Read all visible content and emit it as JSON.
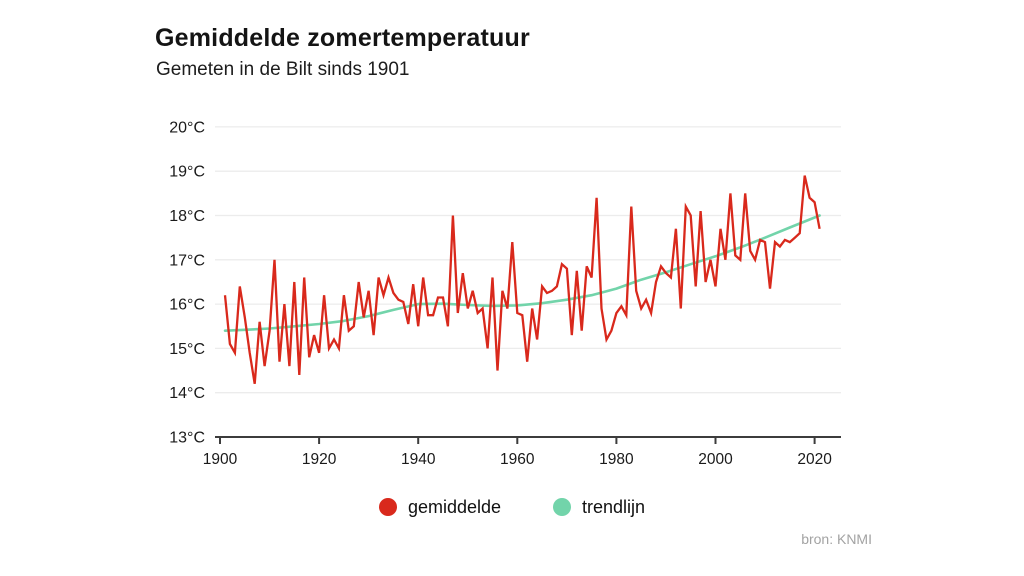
{
  "header": {
    "title": "Gemiddelde zomertemperatuur",
    "subtitle": "Gemeten in de Bilt sinds 1901"
  },
  "legend": {
    "average_label": "gemiddelde",
    "trend_label": "trendlijn"
  },
  "source": "bron: KNMI",
  "colors": {
    "average_line": "#d9291c",
    "trend_line": "#72d4aa",
    "grid": "#ececec",
    "axis": "#3c3c3c",
    "axis_text": "#1a1a1a",
    "source_text": "#a3a3a3"
  },
  "chart_data": {
    "type": "line",
    "title": "Gemiddelde zomertemperatuur",
    "subtitle": "Gemeten in de Bilt sinds 1901",
    "xlabel": "",
    "ylabel": "",
    "ylim": [
      13,
      20
    ],
    "xlim": [
      1900,
      2022
    ],
    "grid": "horizontal",
    "legend_position": "bottom-center",
    "y_ticks": [
      {
        "value": 13,
        "label": "13°C"
      },
      {
        "value": 14,
        "label": "14°C"
      },
      {
        "value": 15,
        "label": "15°C"
      },
      {
        "value": 16,
        "label": "16°C"
      },
      {
        "value": 17,
        "label": "17°C"
      },
      {
        "value": 18,
        "label": "18°C"
      },
      {
        "value": 19,
        "label": "19°C"
      },
      {
        "value": 20,
        "label": "20°C"
      }
    ],
    "x_ticks": [
      {
        "value": 1900,
        "label": "1900"
      },
      {
        "value": 1920,
        "label": "1920"
      },
      {
        "value": 1940,
        "label": "1940"
      },
      {
        "value": 1960,
        "label": "1960"
      },
      {
        "value": 1980,
        "label": "1980"
      },
      {
        "value": 2000,
        "label": "2000"
      },
      {
        "value": 2020,
        "label": "2020"
      }
    ],
    "series": [
      {
        "name": "gemiddelde",
        "unit": "°C",
        "start_year": 1901,
        "values": [
          16.2,
          15.1,
          14.9,
          16.4,
          15.7,
          14.9,
          14.2,
          15.6,
          14.6,
          15.4,
          17.0,
          14.7,
          16.0,
          14.6,
          16.5,
          14.4,
          16.6,
          14.8,
          15.3,
          14.9,
          16.2,
          15.0,
          15.2,
          15.0,
          16.2,
          15.4,
          15.5,
          16.5,
          15.7,
          16.3,
          15.3,
          16.6,
          16.2,
          16.6,
          16.25,
          16.1,
          16.05,
          15.55,
          16.45,
          15.5,
          16.6,
          15.75,
          15.75,
          16.15,
          16.15,
          15.5,
          18.0,
          15.8,
          16.7,
          15.9,
          16.3,
          15.8,
          15.9,
          15.0,
          16.6,
          14.5,
          16.3,
          15.9,
          17.4,
          15.8,
          15.75,
          14.7,
          15.9,
          15.2,
          16.4,
          16.25,
          16.3,
          16.4,
          16.9,
          16.8,
          15.3,
          16.75,
          15.4,
          16.85,
          16.6,
          18.4,
          15.9,
          15.2,
          15.4,
          15.8,
          15.95,
          15.75,
          18.2,
          16.3,
          15.9,
          16.1,
          15.8,
          16.5,
          16.85,
          16.7,
          16.6,
          17.7,
          15.9,
          18.2,
          18.0,
          16.4,
          18.1,
          16.5,
          17.0,
          16.4,
          17.7,
          17.0,
          18.5,
          17.1,
          17.0,
          18.5,
          17.2,
          17.0,
          17.45,
          17.4,
          16.35,
          17.4,
          17.3,
          17.45,
          17.4,
          17.5,
          17.6,
          18.9,
          18.4,
          18.3,
          17.7
        ]
      },
      {
        "name": "trendlijn",
        "unit": "°C",
        "points": [
          [
            1901,
            15.4
          ],
          [
            1905,
            15.42
          ],
          [
            1910,
            15.45
          ],
          [
            1915,
            15.5
          ],
          [
            1920,
            15.55
          ],
          [
            1925,
            15.62
          ],
          [
            1930,
            15.73
          ],
          [
            1935,
            15.87
          ],
          [
            1940,
            16.0
          ],
          [
            1945,
            16.01
          ],
          [
            1950,
            15.98
          ],
          [
            1955,
            15.96
          ],
          [
            1960,
            15.97
          ],
          [
            1965,
            16.02
          ],
          [
            1970,
            16.1
          ],
          [
            1975,
            16.2
          ],
          [
            1980,
            16.35
          ],
          [
            1985,
            16.55
          ],
          [
            1990,
            16.72
          ],
          [
            1995,
            16.9
          ],
          [
            2000,
            17.08
          ],
          [
            2005,
            17.28
          ],
          [
            2010,
            17.5
          ],
          [
            2015,
            17.73
          ],
          [
            2021,
            18.0
          ]
        ]
      }
    ]
  }
}
